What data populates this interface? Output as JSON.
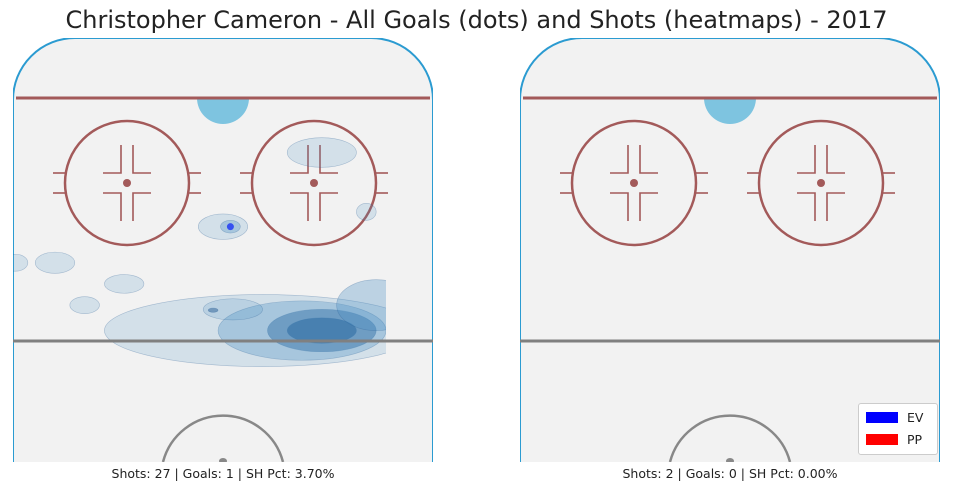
{
  "title": "Christopher Cameron - All Goals (dots) and Shots (heatmaps) - 2017",
  "colors": {
    "board": "#2b9bd1",
    "ice": "#f2f2f2",
    "goal_line": "#a35a5a",
    "faceoff": "#a35a5a",
    "crease": "#7ec4e0",
    "blue_line": "#808080",
    "center_circle": "#888888",
    "heat_base": "#4a90c4",
    "heat_dark": "#2a5f95",
    "goal_dot": "#3550f0"
  },
  "chart_data": [
    {
      "type": "heatmap",
      "panel": "EV",
      "caption": "Shots: 27 | Goals: 1 | SH Pct: 3.70%",
      "stats": {
        "shots": 27,
        "goals": 1,
        "sh_pct": 3.7
      },
      "xlim": [
        -42.5,
        42.5
      ],
      "ylim": [
        0,
        100
      ],
      "shot_density": [
        {
          "x": 20,
          "y": 31,
          "rx": 7,
          "ry": 3,
          "level": 4
        },
        {
          "x": 20,
          "y": 31,
          "rx": 11,
          "ry": 5,
          "level": 3
        },
        {
          "x": 16,
          "y": 31,
          "rx": 17,
          "ry": 7,
          "level": 2
        },
        {
          "x": 8,
          "y": 31,
          "rx": 32,
          "ry": 8.5,
          "level": 1
        },
        {
          "x": 31,
          "y": 37,
          "rx": 8,
          "ry": 6,
          "level": 2
        },
        {
          "x": 2,
          "y": 36,
          "rx": 6,
          "ry": 2.5,
          "level": 1
        },
        {
          "x": -20,
          "y": 42,
          "rx": 4,
          "ry": 2.2,
          "level": 1
        },
        {
          "x": -28,
          "y": 37,
          "rx": 3,
          "ry": 2,
          "level": 1
        },
        {
          "x": -34,
          "y": 47,
          "rx": 4,
          "ry": 2.5,
          "level": 1
        },
        {
          "x": -42,
          "y": 47,
          "rx": 2.5,
          "ry": 2,
          "level": 1
        },
        {
          "x": 0,
          "y": 55.5,
          "rx": 5,
          "ry": 3,
          "level": 1
        },
        {
          "x": 1.5,
          "y": 55.5,
          "rx": 2,
          "ry": 1.5,
          "level": 2
        },
        {
          "x": 20,
          "y": 73,
          "rx": 7,
          "ry": 3.5,
          "level": 1
        },
        {
          "x": 29,
          "y": 59,
          "rx": 2,
          "ry": 2,
          "level": 1
        },
        {
          "x": -2,
          "y": 35.8,
          "rx": 1,
          "ry": 0.5,
          "level": 3
        }
      ],
      "goals": [
        {
          "x": 1.5,
          "y": 55.5,
          "strength": "EV"
        }
      ]
    },
    {
      "type": "heatmap",
      "panel": "PP",
      "caption": "Shots: 2 | Goals: 0 | SH Pct: 0.00%",
      "stats": {
        "shots": 2,
        "goals": 0,
        "sh_pct": 0.0
      },
      "xlim": [
        -42.5,
        42.5
      ],
      "ylim": [
        0,
        100
      ],
      "shot_density": [],
      "goals": []
    }
  ],
  "legend": [
    {
      "label": "EV",
      "color": "#0000ff"
    },
    {
      "label": "PP",
      "color": "#ff0000"
    }
  ]
}
